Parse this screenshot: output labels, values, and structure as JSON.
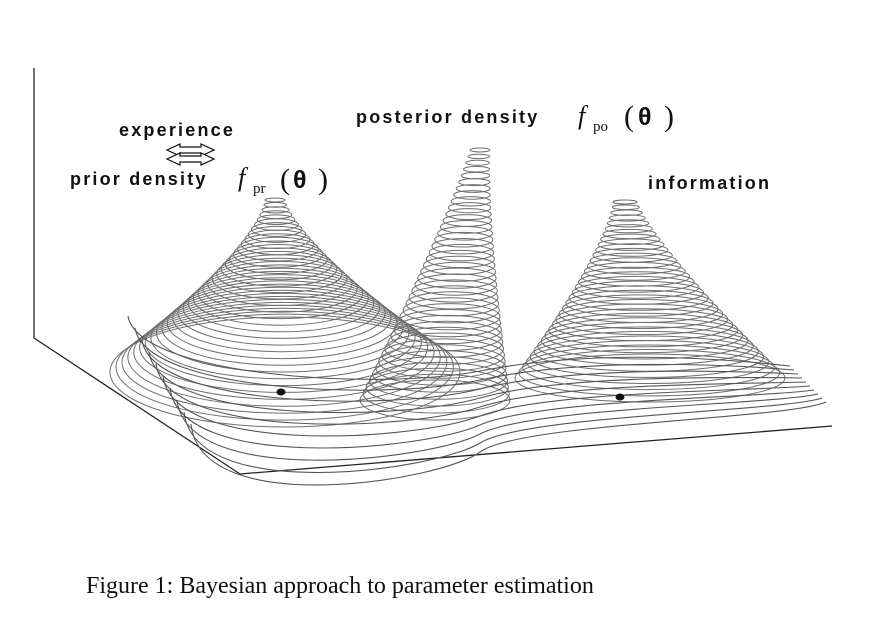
{
  "figure": {
    "labels": {
      "experience": "experience",
      "prior_density": "prior density",
      "posterior_density": "posterior density",
      "information": "information",
      "f": "f",
      "prior_sub": "pr",
      "posterior_sub": "po",
      "open_paren": "(",
      "theta": "θ",
      "close_paren": ")"
    },
    "caption": "Figure 1: Bayesian approach to parameter estimation"
  }
}
